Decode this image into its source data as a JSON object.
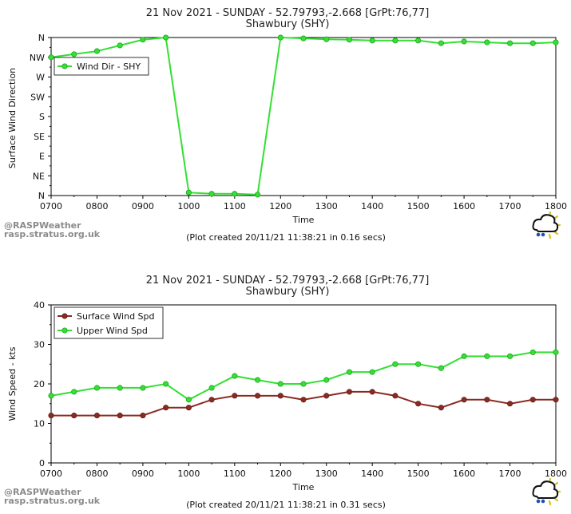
{
  "chart_data": [
    {
      "type": "line",
      "title": "21 Nov 2021 - SUNDAY - 52.79793,-2.668 [GrPt:76,77]",
      "subtitle": "Shawbury (SHY)",
      "xlabel": "Time",
      "ylabel": "Surface Wind Direction",
      "x": [
        "0700",
        "0730",
        "0800",
        "0830",
        "0900",
        "0930",
        "1000",
        "1030",
        "1100",
        "1130",
        "1200",
        "1230",
        "1300",
        "1330",
        "1400",
        "1430",
        "1500",
        "1530",
        "1600",
        "1630",
        "1700",
        "1730",
        "1800"
      ],
      "x_ticks": [
        "0700",
        "0800",
        "0900",
        "1000",
        "1100",
        "1200",
        "1300",
        "1400",
        "1500",
        "1600",
        "1700",
        "1800"
      ],
      "y_ticks": [
        "N",
        "NE",
        "E",
        "SE",
        "S",
        "SW",
        "W",
        "NW",
        "N"
      ],
      "ylim": [
        0,
        360
      ],
      "legend_position": "top-left",
      "series": [
        {
          "name": "Wind Dir - SHY",
          "color": "#33e033",
          "values": [
            315,
            322,
            329,
            342,
            355,
            360,
            7,
            4,
            4,
            2,
            360,
            358,
            356,
            355,
            353,
            353,
            353,
            347,
            351,
            349,
            347,
            347,
            349
          ]
        }
      ],
      "credit": "(Plot created 20/11/21 11:38:21 in 0.16 secs)",
      "brand": [
        "@RASPWeather",
        "rasp.stratus.org.uk"
      ]
    },
    {
      "type": "line",
      "title": "21 Nov 2021 - SUNDAY - 52.79793,-2.668 [GrPt:76,77]",
      "subtitle": "Shawbury (SHY)",
      "xlabel": "Time",
      "ylabel": "Wind Speed - kts",
      "x": [
        "0700",
        "0730",
        "0800",
        "0830",
        "0900",
        "0930",
        "1000",
        "1030",
        "1100",
        "1130",
        "1200",
        "1230",
        "1300",
        "1330",
        "1400",
        "1430",
        "1500",
        "1530",
        "1600",
        "1630",
        "1700",
        "1730",
        "1800"
      ],
      "x_ticks": [
        "0700",
        "0800",
        "0900",
        "1000",
        "1100",
        "1200",
        "1300",
        "1400",
        "1500",
        "1600",
        "1700",
        "1800"
      ],
      "y_ticks": [
        "0",
        "10",
        "20",
        "30",
        "40"
      ],
      "ylim": [
        0,
        40
      ],
      "legend_position": "top-left",
      "series": [
        {
          "name": "Surface Wind Spd",
          "color": "#8b2a22",
          "values": [
            12,
            12,
            12,
            12,
            12,
            14,
            14,
            16,
            17,
            17,
            17,
            16,
            17,
            18,
            18,
            17,
            15,
            14,
            16,
            16,
            15,
            16,
            16
          ]
        },
        {
          "name": "Upper Wind Spd",
          "color": "#33e033",
          "values": [
            17,
            18,
            19,
            19,
            19,
            20,
            16,
            19,
            22,
            21,
            20,
            20,
            21,
            23,
            23,
            25,
            25,
            24,
            27,
            27,
            27,
            28,
            28
          ]
        }
      ],
      "credit": "(Plot created 20/11/21 11:38:21 in 0.31 secs)",
      "brand": [
        "@RASPWeather",
        "rasp.stratus.org.uk"
      ]
    }
  ]
}
